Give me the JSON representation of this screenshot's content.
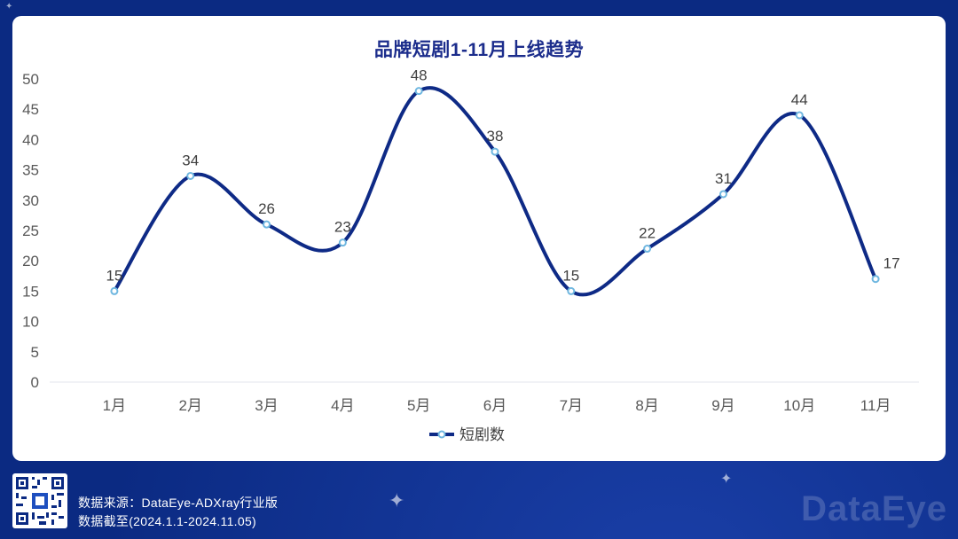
{
  "chart_data": {
    "type": "line",
    "title": "品牌短剧1-11月上线趋势",
    "categories": [
      "1月",
      "2月",
      "3月",
      "4月",
      "5月",
      "6月",
      "7月",
      "8月",
      "9月",
      "10月",
      "11月"
    ],
    "series": [
      {
        "name": "短剧数",
        "values": [
          15,
          34,
          26,
          23,
          48,
          38,
          15,
          22,
          31,
          44,
          17
        ]
      }
    ],
    "ylim": [
      0,
      50
    ],
    "yticks": [
      0,
      5,
      10,
      15,
      20,
      25,
      30,
      35,
      40,
      45,
      50
    ],
    "smooth": true,
    "data_labels": true,
    "grid": false,
    "legend": "bottom",
    "colors": {
      "line": "#0e2a86",
      "marker": "#6fb7e0"
    }
  },
  "footer": {
    "source": "数据来源：DataEye-ADXray行业版",
    "period": "数据截至(2024.1.1-2024.11.05)",
    "brand": "DataEye"
  },
  "icons": [
    "qr-code-icon",
    "sparkle-icon"
  ]
}
